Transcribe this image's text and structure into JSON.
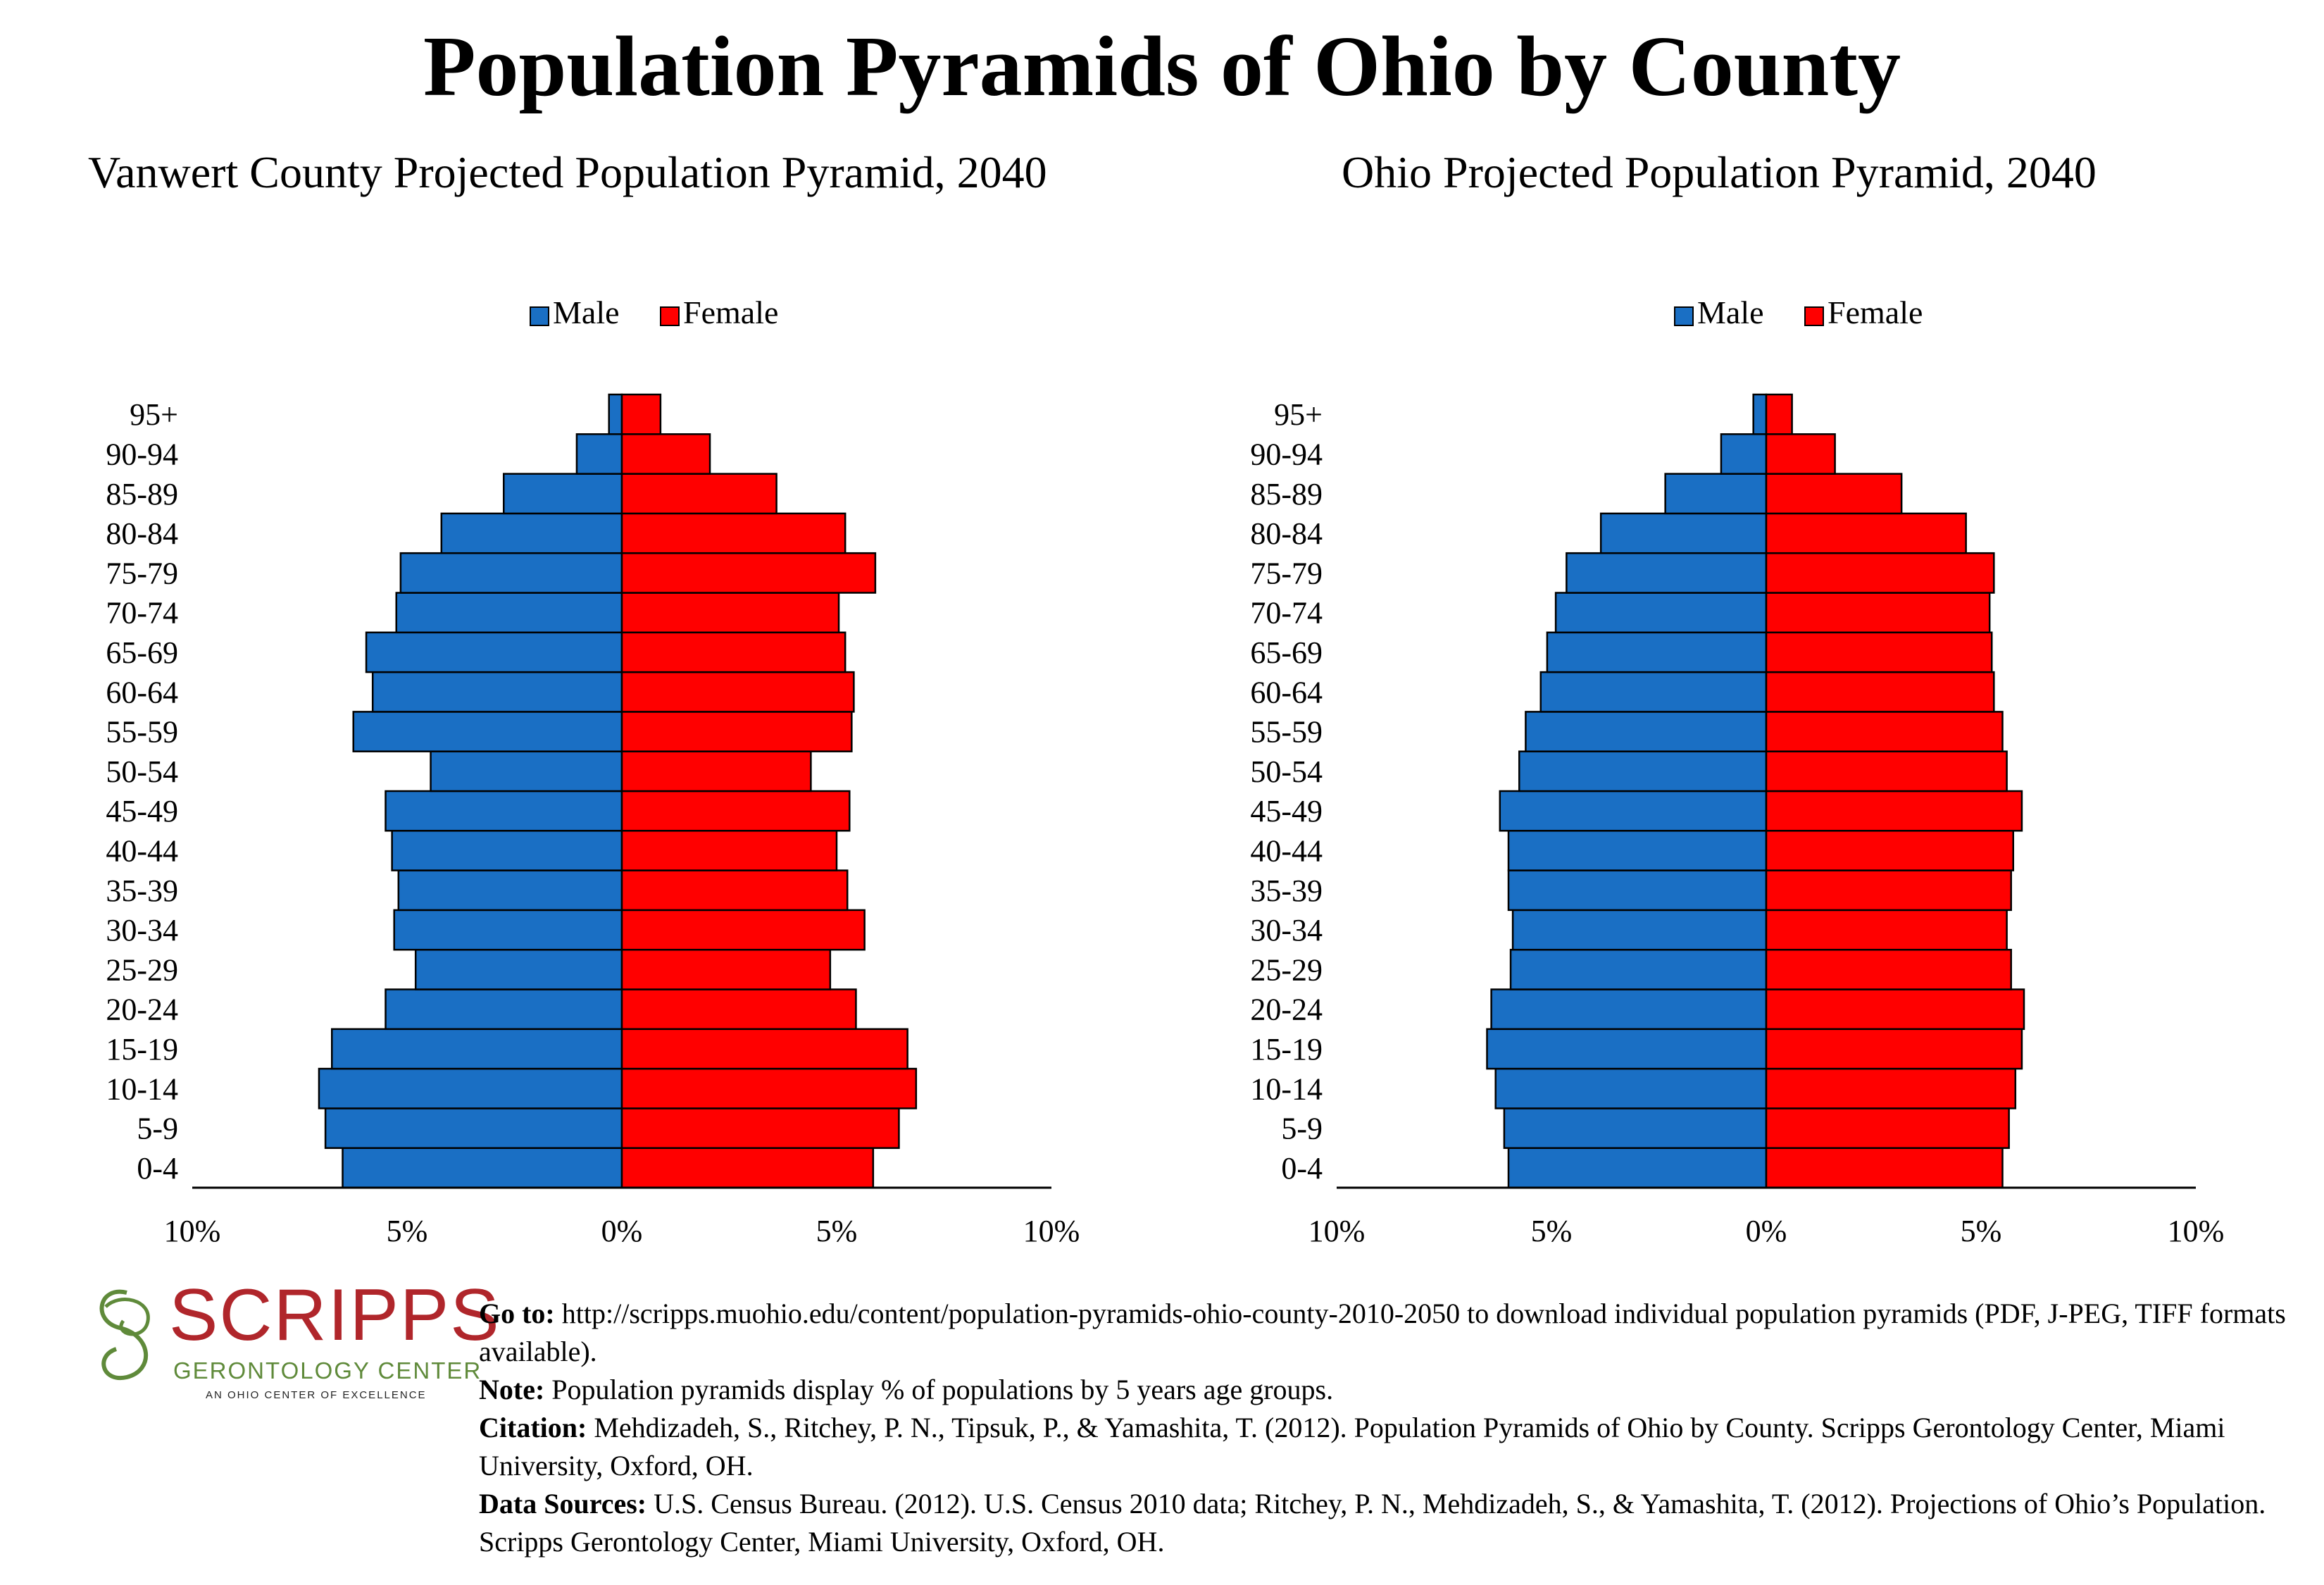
{
  "main_title": "Population Pyramids of Ohio by County",
  "legend": {
    "male": "Male",
    "female": "Female"
  },
  "colors": {
    "male": "#1a6fc4",
    "female": "#ff0000",
    "axis": "#000000"
  },
  "logo": {
    "name": "SCRIPPS",
    "subtitle": "GERONTOLOGY CENTER",
    "tagline": "AN OHIO CENTER OF EXCELLENCE"
  },
  "notes": {
    "goto_label": "Go to:",
    "goto_text": "http://scripps.muohio.edu/content/population-pyramids-ohio-county-2010-2050 to download individual population pyramids (PDF, J-PEG, TIFF formats available).",
    "note_label": "Note:",
    "note_text": "Population pyramids display % of populations by 5 years age groups.",
    "citation_label": "Citation:",
    "citation_text": "Mehdizadeh, S., Ritchey, P. N., Tipsuk, P., & Yamashita, T. (2012). Population Pyramids of Ohio by County. Scripps Gerontology Center, Miami University, Oxford, OH.",
    "sources_label": "Data Sources:",
    "sources_text": "U.S. Census Bureau. (2012). U.S. Census 2010 data; Ritchey, P. N., Mehdizadeh, S., & Yamashita, T. (2012). Projections of Ohio’s Population. Scripps Gerontology Center, Miami University, Oxford, OH."
  },
  "chart_data": [
    {
      "type": "bar",
      "orientation": "horizontal-pyramid",
      "title": "Vanwert County Projected Population Pyramid, 2040",
      "categories": [
        "0-4",
        "5-9",
        "10-14",
        "15-19",
        "20-24",
        "25-29",
        "30-34",
        "35-39",
        "40-44",
        "45-49",
        "50-54",
        "55-59",
        "60-64",
        "65-69",
        "70-74",
        "75-79",
        "80-84",
        "85-89",
        "90-94",
        "95+"
      ],
      "series": [
        {
          "name": "Male",
          "values": [
            6.5,
            6.9,
            7.05,
            6.75,
            5.5,
            4.8,
            5.3,
            5.2,
            5.35,
            5.5,
            4.45,
            6.25,
            5.8,
            5.95,
            5.25,
            5.15,
            4.2,
            2.75,
            1.05,
            0.3
          ]
        },
        {
          "name": "Female",
          "values": [
            5.85,
            6.45,
            6.85,
            6.65,
            5.45,
            4.85,
            5.65,
            5.25,
            5.0,
            5.3,
            4.4,
            5.35,
            5.4,
            5.2,
            5.05,
            5.9,
            5.2,
            3.6,
            2.05,
            0.9
          ]
        }
      ],
      "xlim": [
        -10,
        10
      ],
      "xticks": [
        "10%",
        "5%",
        "0%",
        "5%",
        "10%"
      ],
      "legend_position": "top-center",
      "grid": false
    },
    {
      "type": "bar",
      "orientation": "horizontal-pyramid",
      "title": "Ohio Projected Population Pyramid, 2040",
      "categories": [
        "0-4",
        "5-9",
        "10-14",
        "15-19",
        "20-24",
        "25-29",
        "30-34",
        "35-39",
        "40-44",
        "45-49",
        "50-54",
        "55-59",
        "60-64",
        "65-69",
        "70-74",
        "75-79",
        "80-84",
        "85-89",
        "90-94",
        "95+"
      ],
      "series": [
        {
          "name": "Male",
          "values": [
            6.0,
            6.1,
            6.3,
            6.5,
            6.4,
            5.95,
            5.9,
            6.0,
            6.0,
            6.2,
            5.75,
            5.6,
            5.25,
            5.1,
            4.9,
            4.65,
            3.85,
            2.35,
            1.05,
            0.3
          ]
        },
        {
          "name": "Female",
          "values": [
            5.5,
            5.65,
            5.8,
            5.95,
            6.0,
            5.7,
            5.6,
            5.7,
            5.75,
            5.95,
            5.6,
            5.5,
            5.3,
            5.25,
            5.2,
            5.3,
            4.65,
            3.15,
            1.6,
            0.6
          ]
        }
      ],
      "xlim": [
        -10,
        10
      ],
      "xticks": [
        "10%",
        "5%",
        "0%",
        "5%",
        "10%"
      ],
      "legend_position": "top-center",
      "grid": false
    }
  ]
}
